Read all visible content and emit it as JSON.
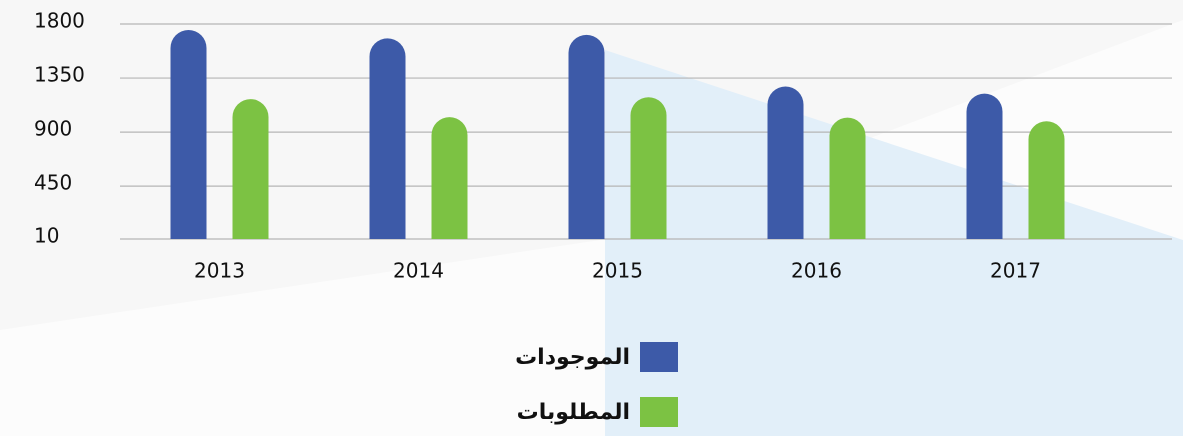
{
  "chart_data": {
    "type": "bar",
    "categories": [
      "2013",
      "2014",
      "2015",
      "2016",
      "2017"
    ],
    "series": [
      {
        "name": "الموجودات",
        "color": "#3d5aa8",
        "values": [
          1750,
          1680,
          1710,
          1280,
          1220
        ]
      },
      {
        "name": "المطلوبات",
        "color": "#7cc243",
        "values": [
          1175,
          1025,
          1190,
          1020,
          990
        ]
      }
    ],
    "ylim": [
      10,
      1800
    ],
    "yticks": [
      10,
      450,
      900,
      1350,
      1800
    ],
    "grid": true,
    "legend": "bottom"
  }
}
